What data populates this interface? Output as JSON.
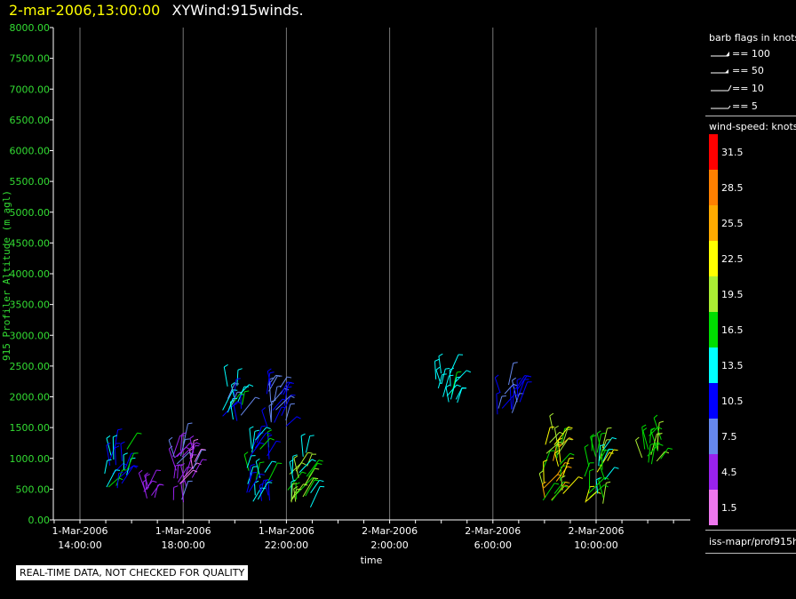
{
  "header": {
    "datetime": "2-mar-2006,13:00:00",
    "product": "XYWind:915winds."
  },
  "chart_data": {
    "type": "scatter",
    "title": "XYWind:915winds.",
    "xlabel": "time",
    "ylabel": "915 Profiler Altitude (m agl)",
    "ylim": [
      0,
      8000
    ],
    "yticks": [
      "0.00",
      "500.00",
      "1000.00",
      "1500.00",
      "2000.00",
      "2500.00",
      "3000.00",
      "3500.00",
      "4000.00",
      "4500.00",
      "5000.00",
      "5500.00",
      "6000.00",
      "6500.00",
      "7000.00",
      "7500.00",
      "8000.00"
    ],
    "xlim_hours_since_start": [
      -1,
      19.4
    ],
    "xticks": [
      {
        "date": "1-Mar-2006",
        "time": "14:00:00",
        "h": 0
      },
      {
        "date": "1-Mar-2006",
        "time": "18:00:00",
        "h": 4
      },
      {
        "date": "1-Mar-2006",
        "time": "22:00:00",
        "h": 8
      },
      {
        "date": "2-Mar-2006",
        "time": "2:00:00",
        "h": 12
      },
      {
        "date": "2-Mar-2006",
        "time": "6:00:00",
        "h": 16
      },
      {
        "date": "2-Mar-2006",
        "time": "10:00:00",
        "h": 20
      }
    ],
    "grid": "vertical",
    "barbs_note": "wind barbs plotted at (time, altitude), colored by wind speed in knots",
    "clusters": [
      {
        "t": 1.4,
        "alt": [
          500,
          1200
        ],
        "speed": [
          10,
          16
        ]
      },
      {
        "t": 2.9,
        "alt": [
          350,
          550
        ],
        "speed": [
          4,
          6
        ]
      },
      {
        "t": 4.0,
        "alt": [
          250,
          1300
        ],
        "speed": [
          2,
          8
        ]
      },
      {
        "t": 5.9,
        "alt": [
          1600,
          2200
        ],
        "speed": [
          8,
          18
        ]
      },
      {
        "t": 6.9,
        "alt": [
          300,
          1400
        ],
        "speed": [
          9,
          17
        ]
      },
      {
        "t": 8.5,
        "alt": [
          200,
          1100
        ],
        "speed": [
          13,
          22
        ]
      },
      {
        "t": 7.6,
        "alt": [
          1500,
          2200
        ],
        "speed": [
          7,
          11
        ]
      },
      {
        "t": 14.2,
        "alt": [
          1900,
          2400
        ],
        "speed": [
          12,
          16
        ]
      },
      {
        "t": 16.6,
        "alt": [
          1700,
          2200
        ],
        "speed": [
          8,
          12
        ]
      },
      {
        "t": 18.3,
        "alt": [
          300,
          1500
        ],
        "speed": [
          16,
          27
        ]
      },
      {
        "t": 20.0,
        "alt": [
          250,
          1200
        ],
        "speed": [
          14,
          22
        ]
      },
      {
        "t": 22.2,
        "alt": [
          900,
          1400
        ],
        "speed": [
          16,
          20
        ]
      }
    ]
  },
  "legend": {
    "barb_title": "barb flags in knots",
    "barbs": [
      "== 100",
      "== 50",
      "== 10",
      "== 5"
    ],
    "speed_title": "wind-speed: knots",
    "speed_bins": [
      {
        "label": "31.5",
        "color": "#ff0000"
      },
      {
        "label": "28.5",
        "color": "#ff8000"
      },
      {
        "label": "25.5",
        "color": "#ffaa00"
      },
      {
        "label": "22.5",
        "color": "#ffff00"
      },
      {
        "label": "19.5",
        "color": "#aaee33"
      },
      {
        "label": "16.5",
        "color": "#00dd00"
      },
      {
        "label": "13.5",
        "color": "#00ffff"
      },
      {
        "label": "10.5",
        "color": "#0000ff"
      },
      {
        "label": "7.5",
        "color": "#6688ee"
      },
      {
        "label": "4.5",
        "color": "#9922ee"
      },
      {
        "label": "1.5",
        "color": "#ee77ee"
      }
    ],
    "source": "iss-mapr/prof915h"
  },
  "notice": "REAL-TIME DATA, NOT CHECKED FOR QUALITY"
}
